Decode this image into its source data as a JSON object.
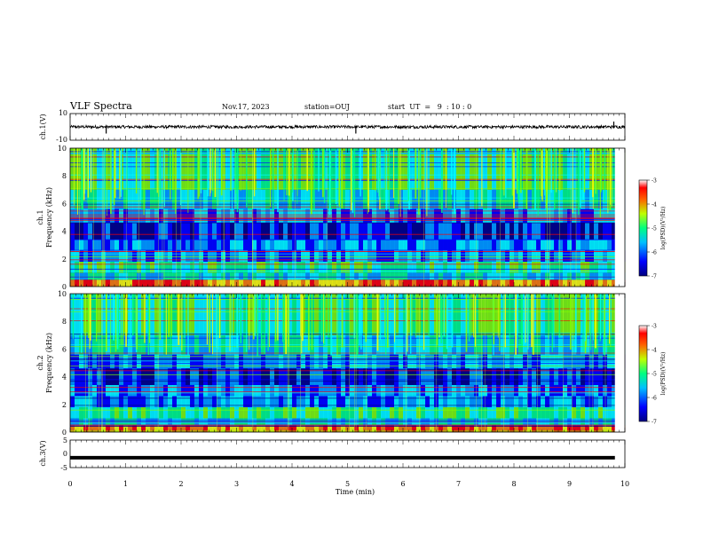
{
  "header": {
    "title": "VLF Spectra",
    "date": "Nov.17, 2023",
    "station": "station=OUJ",
    "start_ut": "start  UT  =   9  : 10 : 0"
  },
  "chart_data": [
    {
      "type": "line",
      "name": "ch1-waveform",
      "ylabel": "ch.1(V)",
      "ylim": [
        -10,
        10
      ],
      "yticks": [
        "10",
        "-10"
      ],
      "xlim": [
        0,
        10
      ],
      "baseline": 0,
      "spikes": [
        {
          "t": 0.65,
          "v": -5
        },
        {
          "t": 5.15,
          "v": -5
        },
        {
          "t": 9.8,
          "v": 4
        }
      ]
    },
    {
      "type": "heatmap",
      "name": "ch1-spectrogram",
      "ylabel_top": "ch.1",
      "ylabel": "Frequency (kHz)",
      "ylim": [
        0,
        10
      ],
      "yticks": [
        "0",
        "2",
        "4",
        "6",
        "8",
        "10"
      ],
      "xlim": [
        0,
        10
      ],
      "colorbar": {
        "label": "log(PSD)(V²/Hz)",
        "range": [
          -7,
          -3
        ],
        "ticks": [
          "-3",
          "-4",
          "-5",
          "-6",
          "-7"
        ]
      }
    },
    {
      "type": "heatmap",
      "name": "ch2-spectrogram",
      "ylabel_top": "ch.2",
      "ylabel": "Frequency (kHz)",
      "ylim": [
        0,
        10
      ],
      "yticks": [
        "0",
        "2",
        "4",
        "6",
        "8",
        "10"
      ],
      "xlim": [
        0,
        10
      ],
      "colorbar": {
        "label": "log(PSD)(V²/Hz)",
        "range": [
          -7,
          -3
        ],
        "ticks": [
          "-3",
          "-4",
          "-5",
          "-6",
          "-7"
        ]
      }
    },
    {
      "type": "line",
      "name": "ch3-waveform",
      "ylabel": "ch.3(V)",
      "ylim": [
        -5,
        5
      ],
      "yticks": [
        "5",
        "0",
        "-5"
      ],
      "xlim": [
        0,
        10
      ],
      "baseline": -1.4
    }
  ],
  "xaxis": {
    "label": "Time (min)",
    "ticks": [
      "0",
      "1",
      "2",
      "3",
      "4",
      "5",
      "6",
      "7",
      "8",
      "9",
      "10"
    ]
  },
  "colors": {
    "colormap": [
      "#000080",
      "#0000ff",
      "#00a0ff",
      "#00ffff",
      "#00ff80",
      "#80ff00",
      "#ffff00",
      "#ff8000",
      "#ff0000",
      "#800000"
    ]
  }
}
